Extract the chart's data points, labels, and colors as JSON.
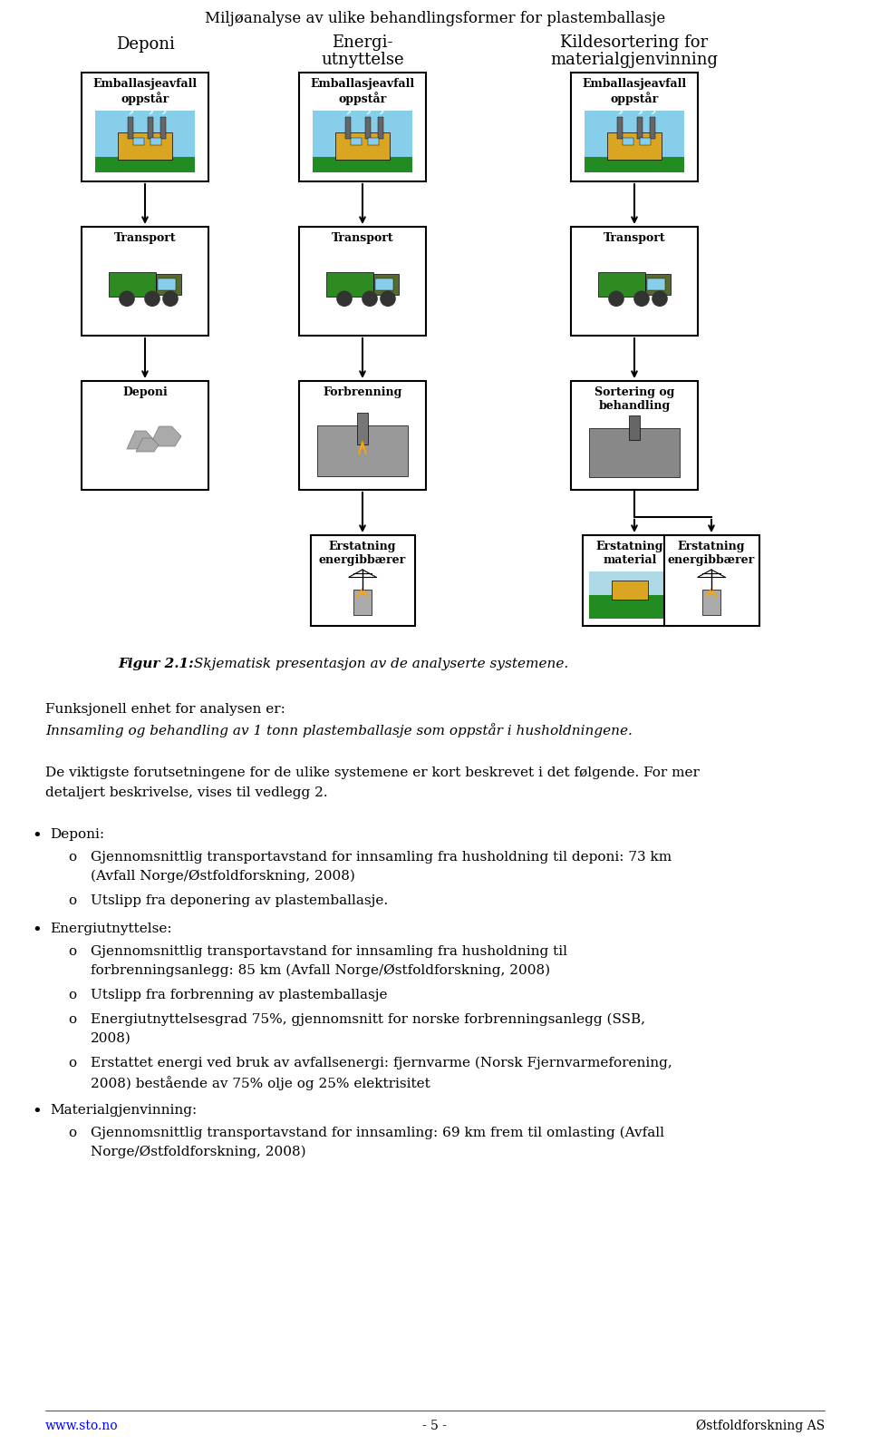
{
  "page_title": "Miljøanalyse av ulike behandlingsformer for plastemballasje",
  "fig_caption_bold": "Figur 2.1:",
  "fig_caption_rest": " Skjematisk presentasjon av de analyserte systemene.",
  "funksjonell_line1": "Funksjonell enhet for analysen er:",
  "funksjonell_line2": "Innsamling og behandling av 1 tonn plastemballasje som oppstår i husholdningene.",
  "de_viktigste_1": "De viktigste forutsetningene for de ulike systemene er kort beskrevet i det følgende. For mer",
  "de_viktigste_2": "detaljert beskrivelse, vises til vedlegg 2.",
  "col1_title": "Deponi",
  "col2_title_1": "Energi-",
  "col2_title_2": "utnyttelse",
  "col3_title_1": "Kildesortering for",
  "col3_title_2": "materialgjenvinning",
  "emball_text": "Emballasjeavfall\noppstår",
  "transport_text": "Transport",
  "deponi_box_text": "Deponi",
  "forbrenning_text": "Forbrenning",
  "sortering_text": "Sortering og\nbehandling",
  "erstatning_energi": "Erstatning\nenergibbærer",
  "erstatning_material": "Erstatning\nmaterial",
  "bullet_deponi_title": "Deponi:",
  "bullet_deponi_1a": "Gjennomsnittlig transportavstand for innsamling fra husholdning til deponi: 73 km",
  "bullet_deponi_1b": "(Avfall Norge/Østfoldforskning, 2008)",
  "bullet_deponi_2": "Utslipp fra deponering av plastemballasje.",
  "bullet_energi_title": "Energiutnyttelse:",
  "bullet_energi_1a": "Gjennomsnittlig transportavstand for innsamling fra husholdning til",
  "bullet_energi_1b": "forbrenningsanlegg: 85 km (Avfall Norge/Østfoldforskning, 2008)",
  "bullet_energi_2": "Utslipp fra forbrenning av plastemballasje",
  "bullet_energi_3a": "Energiutnyttelsesgrad 75%, gjennomsnitt for norske forbrenningsanlegg (SSB,",
  "bullet_energi_3b": "2008)",
  "bullet_energi_4a": "Erstattet energi ved bruk av avfallsenergi: fjernvarme (Norsk Fjernvarmeforening,",
  "bullet_energi_4b": "2008) bestående av 75% olje og 25% elektrisitet",
  "bullet_material_title": "Materialgjenvinning:",
  "bullet_material_1a": "Gjennomsnittlig transportavstand for innsamling: 69 km frem til omlasting (Avfall",
  "bullet_material_1b": "Norge/Østfoldforskning, 2008)",
  "footer_left": "www.sto.no",
  "footer_center": "- 5 -",
  "footer_right": "Østfoldforskning AS",
  "bg": "#ffffff",
  "factory_sky": "#87CEEB",
  "factory_ground": "#228B22",
  "factory_body": "#DAA520",
  "truck_body": "#808080",
  "truck_green": "#2E8B22",
  "rocks_color": "#AAAAAA",
  "box_edge": "#000000",
  "light_blue": "#ADD8E6"
}
